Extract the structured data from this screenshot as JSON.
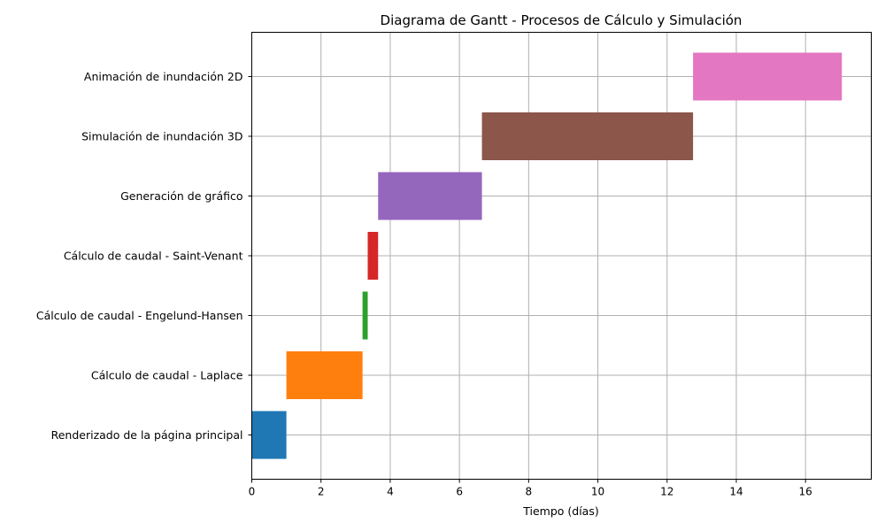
{
  "chart_data": {
    "type": "bar",
    "orientation": "horizontal",
    "title": "Diagrama de Gantt - Procesos de Cálculo y Simulación",
    "xlabel": "Tiempo (días)",
    "ylabel": "",
    "xlim": [
      0,
      17.9
    ],
    "xticks": [
      "0",
      "2",
      "4",
      "6",
      "8",
      "10",
      "12",
      "14",
      "16"
    ],
    "grid": true,
    "tasks": [
      {
        "name": "Renderizado de la página principal",
        "start": 0.0,
        "duration": 1.0,
        "color": "#1f77b4"
      },
      {
        "name": "Cálculo de caudal - Laplace",
        "start": 1.0,
        "duration": 2.2,
        "color": "#ff7f0e"
      },
      {
        "name": "Cálculo de caudal - Engelund-Hansen",
        "start": 3.2,
        "duration": 0.15,
        "color": "#2ca02c"
      },
      {
        "name": "Cálculo de caudal - Saint-Venant",
        "start": 3.35,
        "duration": 0.3,
        "color": "#d62728"
      },
      {
        "name": "Generación de gráfico",
        "start": 3.65,
        "duration": 3.0,
        "color": "#9467bd"
      },
      {
        "name": "Simulación de inundación 3D",
        "start": 6.65,
        "duration": 6.1,
        "color": "#8c564b"
      },
      {
        "name": "Animación de inundación 2D",
        "start": 12.75,
        "duration": 4.3,
        "color": "#e377c2"
      }
    ]
  }
}
